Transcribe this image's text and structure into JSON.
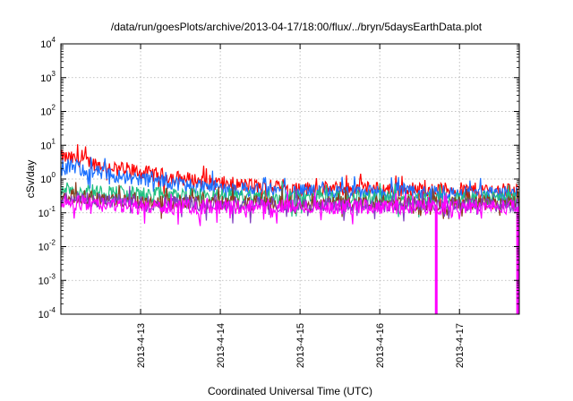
{
  "chart_data": {
    "type": "line",
    "title": "/data/run/goesPlots/archive/2013-04-17/18:00/flux/../bryn/5daysEarthData.plot",
    "xlabel": "Coordinated Universal Time (UTC)",
    "ylabel": "cSv/day",
    "y_scale": "log",
    "ylim": [
      0.0001,
      10000
    ],
    "y_ticks": [
      {
        "base": "10",
        "exp": "-4",
        "value": 0.0001
      },
      {
        "base": "10",
        "exp": "-3",
        "value": 0.001
      },
      {
        "base": "10",
        "exp": "-2",
        "value": 0.01
      },
      {
        "base": "10",
        "exp": "-1",
        "value": 0.1
      },
      {
        "base": "10",
        "exp": "0",
        "value": 1
      },
      {
        "base": "10",
        "exp": "1",
        "value": 10
      },
      {
        "base": "10",
        "exp": "2",
        "value": 100
      },
      {
        "base": "10",
        "exp": "3",
        "value": 1000
      },
      {
        "base": "10",
        "exp": "4",
        "value": 10000
      }
    ],
    "xlim": [
      "2013-04-12T00:00",
      "2013-04-17T18:00"
    ],
    "x_ticks": [
      "2013-4-13",
      "2013-4-14",
      "2013-4-15",
      "2013-4-16",
      "2013-4-17"
    ],
    "x_tick_dates": [
      "2013-04-13T00:00",
      "2013-04-14T00:00",
      "2013-04-15T00:00",
      "2013-04-16T00:00",
      "2013-04-17T00:00"
    ],
    "grid": true,
    "noise_amplitude": 0.22,
    "series": [
      {
        "color": "#ff0000",
        "x": [
          "2013-04-12T00:00",
          "2013-04-12T06:00",
          "2013-04-12T12:00",
          "2013-04-13T00:00",
          "2013-04-13T12:00",
          "2013-04-14T00:00",
          "2013-04-14T12:00",
          "2013-04-15T00:00",
          "2013-04-16T00:00",
          "2013-04-17T00:00",
          "2013-04-17T18:00"
        ],
        "values": [
          4.5,
          3.6,
          2.6,
          1.6,
          1.05,
          0.75,
          0.6,
          0.52,
          0.5,
          0.48,
          0.46
        ]
      },
      {
        "color": "#1a6fff",
        "x": [
          "2013-04-12T00:00",
          "2013-04-12T06:00",
          "2013-04-12T12:00",
          "2013-04-13T00:00",
          "2013-04-13T12:00",
          "2013-04-14T00:00",
          "2013-04-14T12:00",
          "2013-04-15T00:00",
          "2013-04-16T00:00",
          "2013-04-17T00:00",
          "2013-04-17T18:00"
        ],
        "values": [
          2.6,
          2.0,
          1.5,
          1.0,
          0.72,
          0.55,
          0.47,
          0.42,
          0.4,
          0.38,
          0.37
        ]
      },
      {
        "color": "#20c080",
        "x": [
          "2013-04-12T00:00",
          "2013-04-12T12:00",
          "2013-04-13T00:00",
          "2013-04-14T00:00",
          "2013-04-15T00:00",
          "2013-04-16T00:00",
          "2013-04-17T00:00",
          "2013-04-17T18:00"
        ],
        "values": [
          0.55,
          0.42,
          0.36,
          0.31,
          0.28,
          0.27,
          0.26,
          0.26
        ]
      },
      {
        "color": "#8c3c1e",
        "x": [
          "2013-04-12T00:00",
          "2013-04-12T12:00",
          "2013-04-13T00:00",
          "2013-04-14T00:00",
          "2013-04-15T00:00",
          "2013-04-16T00:00",
          "2013-04-17T00:00",
          "2013-04-17T18:00"
        ],
        "values": [
          0.33,
          0.26,
          0.22,
          0.2,
          0.19,
          0.19,
          0.19,
          0.19
        ]
      },
      {
        "color": "#8040c0",
        "x": [
          "2013-04-12T00:00",
          "2013-04-12T12:00",
          "2013-04-13T00:00",
          "2013-04-14T00:00",
          "2013-04-15T00:00",
          "2013-04-16T00:00",
          "2013-04-17T00:00",
          "2013-04-17T18:00"
        ],
        "values": [
          0.28,
          0.23,
          0.2,
          0.18,
          0.17,
          0.17,
          0.17,
          0.17
        ]
      },
      {
        "color": "#ff00ff",
        "x": [
          "2013-04-12T00:00",
          "2013-04-12T12:00",
          "2013-04-13T00:00",
          "2013-04-14T00:00",
          "2013-04-15T00:00",
          "2013-04-16T00:00",
          "2013-04-17T00:00",
          "2013-04-17T18:00"
        ],
        "values": [
          0.2,
          0.17,
          0.15,
          0.15,
          0.15,
          0.15,
          0.15,
          0.15
        ],
        "dropouts": [
          "2013-04-16T17:00",
          "2013-04-17T17:30"
        ]
      }
    ]
  }
}
